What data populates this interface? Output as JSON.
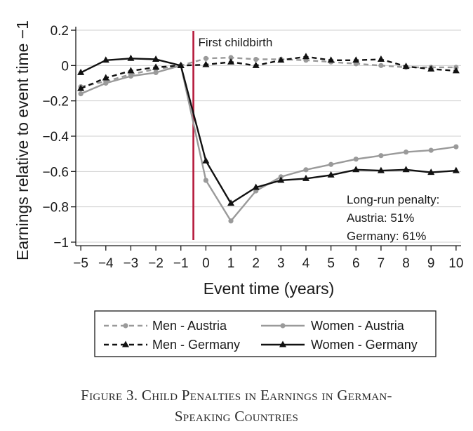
{
  "chart_data": {
    "type": "line",
    "xlabel": "Event time (years)",
    "ylabel": "Earnings relative to event time −1",
    "x": [
      -5,
      -4,
      -3,
      -2,
      -1,
      0,
      1,
      2,
      3,
      4,
      5,
      6,
      7,
      8,
      9,
      10
    ],
    "xticks": [
      "−5",
      "−4",
      "−3",
      "−2",
      "−1",
      "0",
      "1",
      "2",
      "3",
      "4",
      "5",
      "6",
      "7",
      "8",
      "9",
      "10"
    ],
    "yticks": [
      {
        "value": 0.2,
        "label": "0.2"
      },
      {
        "value": 0,
        "label": "0"
      },
      {
        "value": -0.2,
        "label": "−0.2"
      },
      {
        "value": -0.4,
        "label": "−0.4"
      },
      {
        "value": -0.6,
        "label": "−0.6"
      },
      {
        "value": -0.8,
        "label": "−0.8"
      },
      {
        "value": -1,
        "label": "−1"
      }
    ],
    "xlim": [
      -5.2,
      10.2
    ],
    "ylim": [
      -1.02,
      0.22
    ],
    "grid": "horizontal",
    "event_line": {
      "x": -0.5,
      "label": "First childbirth",
      "color": "#b5193a"
    },
    "annotation": [
      "Long-run penalty:",
      "Austria: 51%",
      "Germany: 61%"
    ],
    "series": [
      {
        "name": "Men - Austria",
        "color": "#9a9a9a",
        "dashed": true,
        "marker": "circle",
        "values": [
          -0.12,
          -0.09,
          -0.05,
          -0.02,
          0.0,
          0.04,
          0.045,
          0.035,
          0.035,
          0.03,
          0.02,
          0.01,
          0.0,
          -0.01,
          -0.01,
          -0.01
        ]
      },
      {
        "name": "Men - Germany",
        "color": "#111111",
        "dashed": true,
        "marker": "triangle",
        "values": [
          -0.13,
          -0.07,
          -0.03,
          -0.01,
          0.0,
          0.005,
          0.02,
          0.0,
          0.03,
          0.05,
          0.03,
          0.03,
          0.035,
          -0.005,
          -0.02,
          -0.03
        ]
      },
      {
        "name": "Women - Austria",
        "color": "#9a9a9a",
        "dashed": false,
        "marker": "circle",
        "values": [
          -0.16,
          -0.1,
          -0.06,
          -0.04,
          0.0,
          -0.65,
          -0.88,
          -0.71,
          -0.63,
          -0.59,
          -0.56,
          -0.53,
          -0.51,
          -0.49,
          -0.48,
          -0.46
        ]
      },
      {
        "name": "Women - Germany",
        "color": "#111111",
        "dashed": false,
        "marker": "triangle",
        "values": [
          -0.04,
          0.03,
          0.04,
          0.035,
          0.0,
          -0.54,
          -0.78,
          -0.69,
          -0.65,
          -0.64,
          -0.62,
          -0.59,
          -0.595,
          -0.59,
          -0.605,
          -0.595
        ]
      }
    ]
  },
  "caption": {
    "line1": "Figure 3. Child Penalties in Earnings in German-",
    "line2": "Speaking Countries"
  }
}
